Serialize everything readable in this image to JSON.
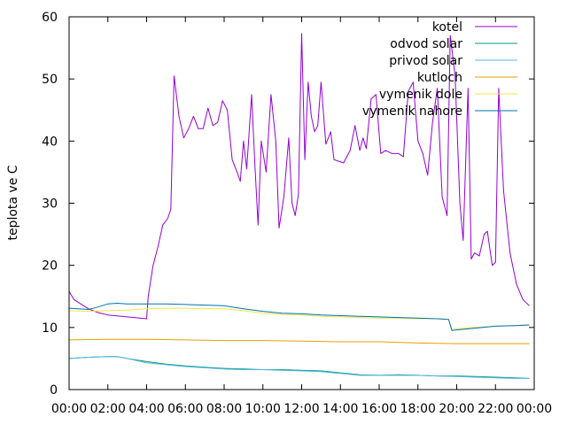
{
  "chart_data": {
    "type": "line",
    "ylabel": "teplota ve C",
    "xlim": [
      "00:00",
      "24:00"
    ],
    "ylim": [
      0,
      60
    ],
    "grid": false,
    "legend_position": "top-right",
    "x_ticks": [
      "00:00",
      "02:00",
      "04:00",
      "06:00",
      "08:00",
      "10:00",
      "12:00",
      "14:00",
      "16:00",
      "18:00",
      "20:00",
      "22:00",
      "00:00"
    ],
    "y_ticks": [
      "0",
      "10",
      "20",
      "30",
      "40",
      "50",
      "60"
    ],
    "series": [
      {
        "name": "kotel",
        "color": "#9400d3",
        "points": [
          [
            "00:00",
            15.8
          ],
          [
            "00:15",
            14.5
          ],
          [
            "00:30",
            14.0
          ],
          [
            "01:00",
            13.0
          ],
          [
            "01:30",
            12.4
          ],
          [
            "02:00",
            12.0
          ],
          [
            "03:00",
            11.7
          ],
          [
            "04:00",
            11.4
          ],
          [
            "04:05",
            15.0
          ],
          [
            "04:20",
            20.0
          ],
          [
            "04:35",
            23.0
          ],
          [
            "04:50",
            26.5
          ],
          [
            "05:05",
            27.5
          ],
          [
            "05:15",
            29.0
          ],
          [
            "05:25",
            50.5
          ],
          [
            "05:40",
            44.0
          ],
          [
            "05:55",
            40.5
          ],
          [
            "06:10",
            42.0
          ],
          [
            "06:25",
            44.0
          ],
          [
            "06:40",
            42.0
          ],
          [
            "06:55",
            42.0
          ],
          [
            "07:10",
            45.3
          ],
          [
            "07:25",
            42.5
          ],
          [
            "07:40",
            43.0
          ],
          [
            "07:55",
            46.5
          ],
          [
            "08:10",
            45.0
          ],
          [
            "08:25",
            37.0
          ],
          [
            "08:40",
            35.0
          ],
          [
            "08:50",
            33.5
          ],
          [
            "09:00",
            40.0
          ],
          [
            "09:10",
            35.5
          ],
          [
            "09:25",
            47.5
          ],
          [
            "09:35",
            36.5
          ],
          [
            "09:45",
            26.5
          ],
          [
            "09:55",
            40.0
          ],
          [
            "10:10",
            35.0
          ],
          [
            "10:25",
            47.5
          ],
          [
            "10:40",
            40.0
          ],
          [
            "10:50",
            26.0
          ],
          [
            "11:05",
            31.0
          ],
          [
            "11:20",
            40.5
          ],
          [
            "11:30",
            30.0
          ],
          [
            "11:40",
            28.0
          ],
          [
            "11:50",
            31.5
          ],
          [
            "12:00",
            57.3
          ],
          [
            "12:10",
            37.0
          ],
          [
            "12:20",
            49.5
          ],
          [
            "12:30",
            44.0
          ],
          [
            "12:40",
            41.5
          ],
          [
            "12:50",
            42.5
          ],
          [
            "13:00",
            49.5
          ],
          [
            "13:15",
            39.5
          ],
          [
            "13:30",
            41.5
          ],
          [
            "13:40",
            37.0
          ],
          [
            "14:10",
            36.5
          ],
          [
            "14:30",
            38.5
          ],
          [
            "14:45",
            42.5
          ],
          [
            "15:00",
            38.5
          ],
          [
            "15:10",
            40.5
          ],
          [
            "15:20",
            38.8
          ],
          [
            "15:35",
            46.8
          ],
          [
            "15:50",
            47.5
          ],
          [
            "16:05",
            38.0
          ],
          [
            "16:20",
            38.5
          ],
          [
            "16:40",
            38.0
          ],
          [
            "17:00",
            38.0
          ],
          [
            "17:15",
            37.5
          ],
          [
            "17:30",
            48.0
          ],
          [
            "17:45",
            49.5
          ],
          [
            "18:00",
            40.0
          ],
          [
            "18:15",
            38.0
          ],
          [
            "18:30",
            34.5
          ],
          [
            "18:45",
            43.0
          ],
          [
            "19:00",
            48.5
          ],
          [
            "19:15",
            31.0
          ],
          [
            "19:30",
            28.0
          ],
          [
            "19:40",
            57.0
          ],
          [
            "19:55",
            50.5
          ],
          [
            "20:10",
            30.0
          ],
          [
            "20:20",
            24.0
          ],
          [
            "20:35",
            48.5
          ],
          [
            "20:45",
            21.0
          ],
          [
            "20:55",
            22.0
          ],
          [
            "21:10",
            21.5
          ],
          [
            "21:25",
            25.0
          ],
          [
            "21:35",
            25.5
          ],
          [
            "21:50",
            20.0
          ],
          [
            "22:00",
            20.5
          ],
          [
            "22:10",
            48.5
          ],
          [
            "22:25",
            32.0
          ],
          [
            "22:45",
            22.0
          ],
          [
            "23:05",
            17.0
          ],
          [
            "23:25",
            14.5
          ],
          [
            "23:45",
            13.5
          ]
        ]
      },
      {
        "name": "odvod solar",
        "color": "#009e73",
        "points": [
          [
            "00:00",
            5.0
          ],
          [
            "01:00",
            5.2
          ],
          [
            "02:00",
            5.3
          ],
          [
            "02:30",
            5.3
          ],
          [
            "03:00",
            5.0
          ],
          [
            "04:00",
            4.5
          ],
          [
            "05:00",
            4.1
          ],
          [
            "06:00",
            3.8
          ],
          [
            "07:00",
            3.6
          ],
          [
            "08:00",
            3.4
          ],
          [
            "09:00",
            3.3
          ],
          [
            "10:00",
            3.2
          ],
          [
            "11:00",
            3.2
          ],
          [
            "12:00",
            3.1
          ],
          [
            "13:00",
            3.0
          ],
          [
            "14:00",
            2.7
          ],
          [
            "15:00",
            2.4
          ],
          [
            "16:00",
            2.3
          ],
          [
            "17:00",
            2.4
          ],
          [
            "18:00",
            2.3
          ],
          [
            "19:00",
            2.2
          ],
          [
            "20:00",
            2.2
          ],
          [
            "21:00",
            2.1
          ],
          [
            "22:00",
            2.0
          ],
          [
            "23:00",
            1.9
          ],
          [
            "23:45",
            1.8
          ]
        ]
      },
      {
        "name": "privod solar",
        "color": "#56b4e9",
        "points": [
          [
            "00:00",
            5.0
          ],
          [
            "01:00",
            5.2
          ],
          [
            "02:00",
            5.3
          ],
          [
            "02:30",
            5.3
          ],
          [
            "03:00",
            5.0
          ],
          [
            "04:00",
            4.3
          ],
          [
            "05:00",
            4.0
          ],
          [
            "06:00",
            3.7
          ],
          [
            "07:00",
            3.5
          ],
          [
            "08:00",
            3.3
          ],
          [
            "09:00",
            3.2
          ],
          [
            "10:00",
            3.2
          ],
          [
            "11:00",
            3.1
          ],
          [
            "12:00",
            3.0
          ],
          [
            "13:00",
            2.9
          ],
          [
            "14:00",
            2.6
          ],
          [
            "15:00",
            2.3
          ],
          [
            "16:00",
            2.3
          ],
          [
            "17:00",
            2.3
          ],
          [
            "18:00",
            2.3
          ],
          [
            "19:00",
            2.2
          ],
          [
            "20:00",
            2.1
          ],
          [
            "21:00",
            2.0
          ],
          [
            "22:00",
            1.9
          ],
          [
            "23:00",
            1.8
          ],
          [
            "23:45",
            1.8
          ]
        ]
      },
      {
        "name": "kutloch",
        "color": "#e69f00",
        "points": [
          [
            "00:00",
            8.0
          ],
          [
            "02:00",
            8.1
          ],
          [
            "04:00",
            8.1
          ],
          [
            "06:00",
            8.0
          ],
          [
            "08:00",
            7.9
          ],
          [
            "10:00",
            7.9
          ],
          [
            "12:00",
            7.8
          ],
          [
            "14:00",
            7.7
          ],
          [
            "16:00",
            7.7
          ],
          [
            "18:00",
            7.5
          ],
          [
            "20:00",
            7.4
          ],
          [
            "22:00",
            7.4
          ],
          [
            "23:45",
            7.4
          ]
        ]
      },
      {
        "name": "vymenik dole",
        "color": "#f0e442",
        "points": [
          [
            "00:00",
            12.7
          ],
          [
            "01:00",
            12.6
          ],
          [
            "02:00",
            12.7
          ],
          [
            "03:00",
            12.8
          ],
          [
            "04:00",
            13.0
          ],
          [
            "05:00",
            13.1
          ],
          [
            "06:00",
            13.1
          ],
          [
            "07:00",
            13.0
          ],
          [
            "08:00",
            13.0
          ],
          [
            "09:00",
            12.7
          ],
          [
            "10:00",
            12.3
          ],
          [
            "11:00",
            12.1
          ],
          [
            "12:00",
            12.0
          ],
          [
            "13:00",
            11.8
          ],
          [
            "14:00",
            11.7
          ],
          [
            "15:00",
            11.6
          ],
          [
            "16:00",
            11.5
          ],
          [
            "17:00",
            11.5
          ],
          [
            "18:00",
            11.4
          ],
          [
            "19:00",
            11.4
          ],
          [
            "19:35",
            11.3
          ],
          [
            "19:45",
            9.8
          ],
          [
            "20:00",
            9.8
          ],
          [
            "21:00",
            10.0
          ],
          [
            "22:00",
            10.2
          ],
          [
            "23:00",
            10.3
          ],
          [
            "23:45",
            10.4
          ]
        ]
      },
      {
        "name": "vymenik nahore",
        "color": "#0072b2",
        "points": [
          [
            "00:00",
            13.1
          ],
          [
            "01:00",
            12.9
          ],
          [
            "01:30",
            13.3
          ],
          [
            "02:00",
            13.8
          ],
          [
            "02:30",
            13.9
          ],
          [
            "03:00",
            13.8
          ],
          [
            "04:00",
            13.8
          ],
          [
            "05:00",
            13.8
          ],
          [
            "06:00",
            13.7
          ],
          [
            "07:00",
            13.6
          ],
          [
            "08:00",
            13.5
          ],
          [
            "09:00",
            13.0
          ],
          [
            "10:00",
            12.6
          ],
          [
            "11:00",
            12.3
          ],
          [
            "12:00",
            12.2
          ],
          [
            "13:00",
            12.0
          ],
          [
            "14:00",
            11.9
          ],
          [
            "15:00",
            11.8
          ],
          [
            "16:00",
            11.7
          ],
          [
            "17:00",
            11.6
          ],
          [
            "18:00",
            11.5
          ],
          [
            "19:00",
            11.4
          ],
          [
            "19:35",
            11.3
          ],
          [
            "19:45",
            9.5
          ],
          [
            "20:00",
            9.6
          ],
          [
            "21:00",
            9.9
          ],
          [
            "22:00",
            10.2
          ],
          [
            "23:00",
            10.3
          ],
          [
            "23:45",
            10.4
          ]
        ]
      }
    ]
  }
}
